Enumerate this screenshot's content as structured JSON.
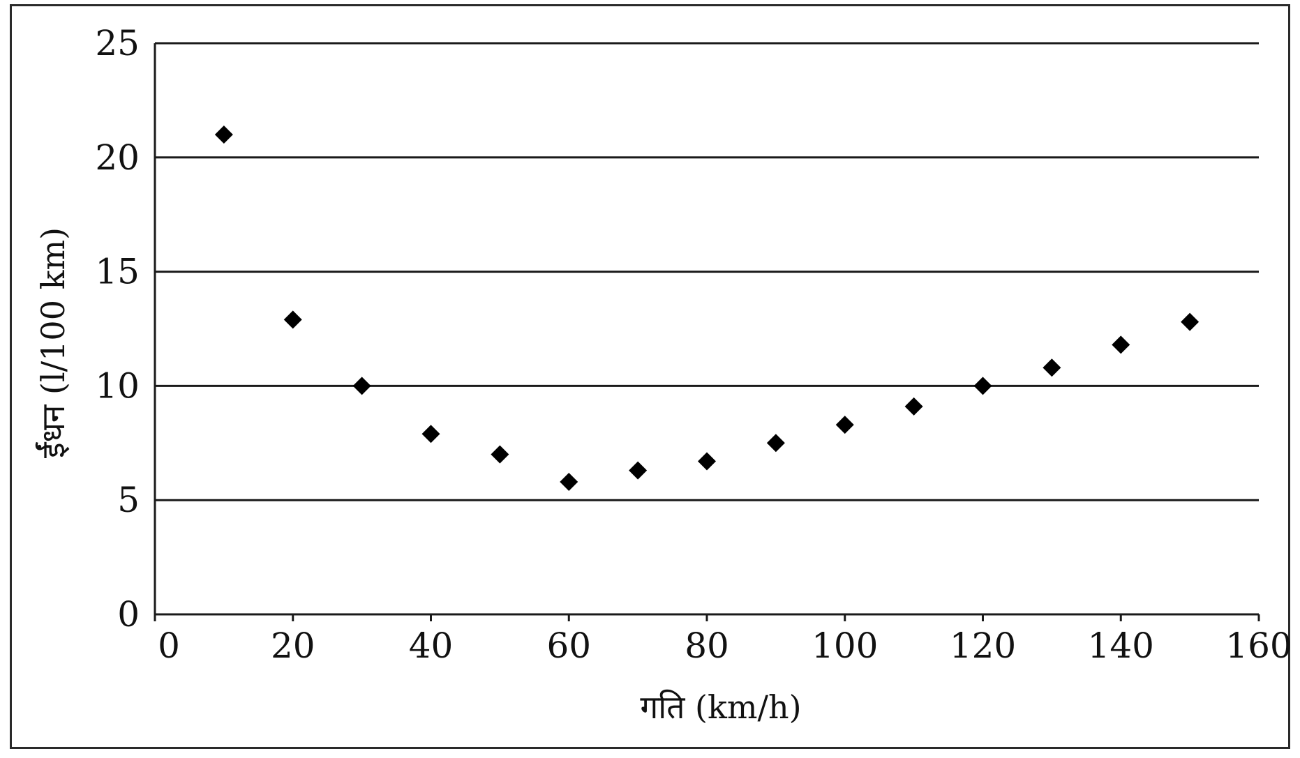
{
  "chart_data": {
    "type": "scatter",
    "title": "",
    "xlabel": "गति (km/h)",
    "ylabel": "ईंधन (l/100 km)",
    "xlim": [
      0,
      160
    ],
    "ylim": [
      0,
      25
    ],
    "x_ticks": [
      0,
      20,
      40,
      60,
      80,
      100,
      120,
      140,
      160
    ],
    "y_ticks": [
      0,
      5,
      10,
      15,
      20,
      25
    ],
    "grid": "horizontal",
    "legend": "none",
    "marker": "diamond",
    "marker_color": "#000000",
    "series": [
      {
        "x": [
          10,
          20,
          30,
          40,
          50,
          60,
          70,
          80,
          90,
          100,
          110,
          120,
          130,
          140,
          150
        ],
        "y": [
          21.0,
          12.9,
          10.0,
          7.9,
          7.0,
          5.8,
          6.3,
          6.7,
          7.5,
          8.3,
          9.1,
          10.0,
          10.8,
          11.8,
          12.8
        ]
      }
    ]
  }
}
